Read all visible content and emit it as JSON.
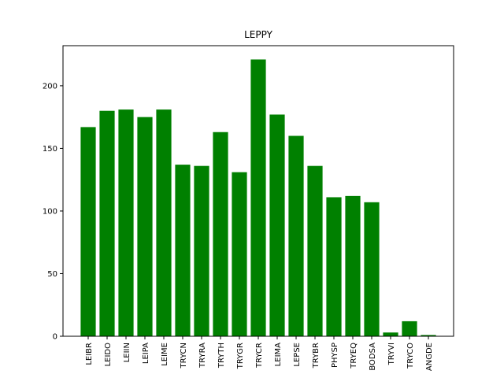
{
  "chart_data": {
    "type": "bar",
    "title": "LEPPY",
    "xlabel": "",
    "ylabel": "",
    "categories": [
      "LEIBR",
      "LEIDO",
      "LEIIN",
      "LEIPA",
      "LEIME",
      "TRYCN",
      "TRYRA",
      "TRYTH",
      "TRYGR",
      "TRYCR",
      "LEIMA",
      "LEPSE",
      "TRYBR",
      "PHYSP",
      "TRYEQ",
      "BODSA",
      "TRYVI",
      "TRYCO",
      "ANGDE"
    ],
    "values": [
      167,
      180,
      181,
      175,
      181,
      137,
      136,
      163,
      131,
      221,
      177,
      160,
      136,
      111,
      112,
      107,
      3,
      12,
      1
    ],
    "ylim": [
      0,
      232
    ],
    "yticks": [
      0,
      50,
      100,
      150,
      200
    ],
    "bar_color": "#008000",
    "grid": false
  }
}
